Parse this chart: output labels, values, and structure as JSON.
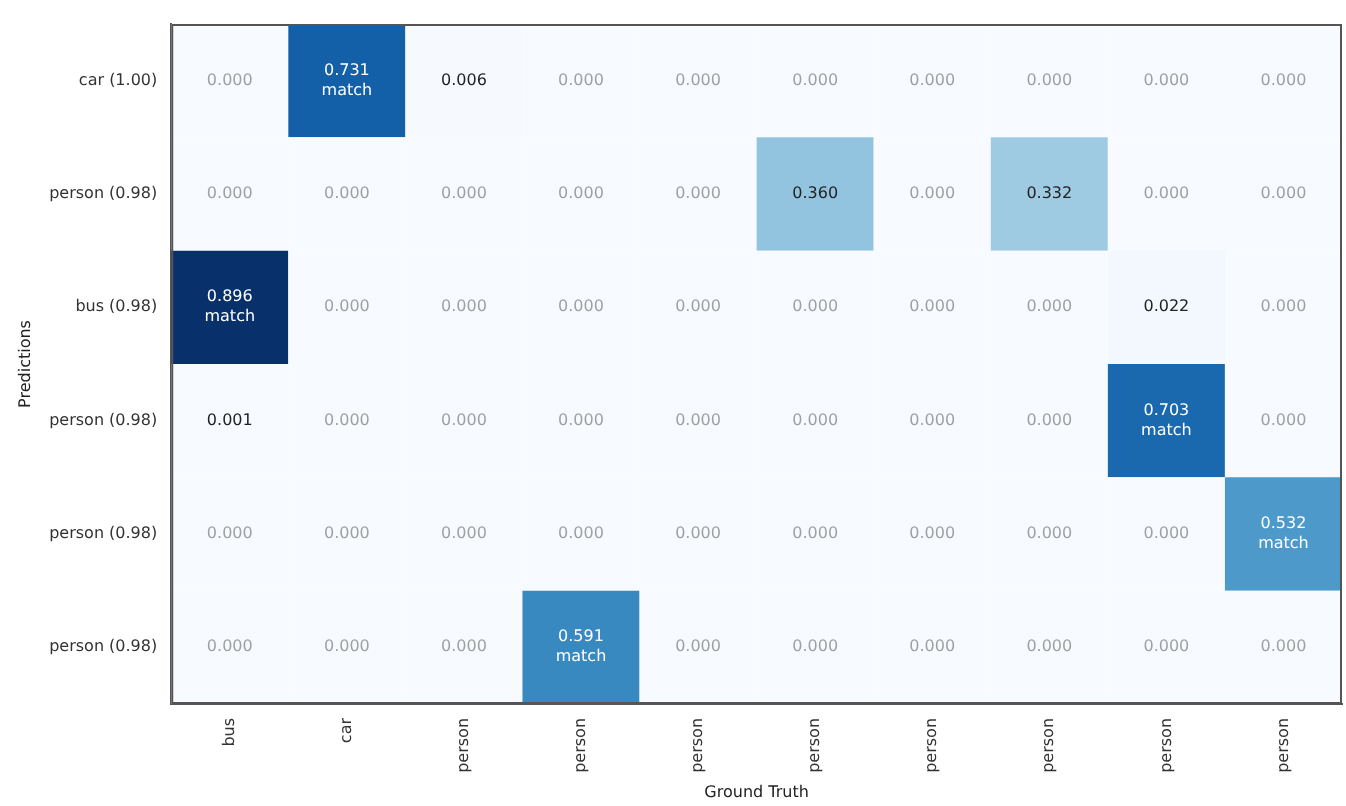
{
  "chart_data": {
    "type": "heatmap",
    "xlabel": "Ground Truth",
    "ylabel": "Predictions",
    "categories": [
      "bus",
      "car",
      "person",
      "person",
      "person",
      "person",
      "person",
      "person",
      "person",
      "person"
    ],
    "y_categories": [
      "car (1.00)",
      "person (0.98)",
      "bus (0.98)",
      "person (0.98)",
      "person (0.98)",
      "person (0.98)"
    ],
    "cells": [
      [
        0.0,
        0.731,
        0.006,
        0.0,
        0.0,
        0.0,
        0.0,
        0.0,
        0.0,
        0.0
      ],
      [
        0.0,
        0.0,
        0.0,
        0.0,
        0.0,
        0.36,
        0.0,
        0.332,
        0.0,
        0.0
      ],
      [
        0.896,
        0.0,
        0.0,
        0.0,
        0.0,
        0.0,
        0.0,
        0.0,
        0.022,
        0.0
      ],
      [
        0.001,
        0.0,
        0.0,
        0.0,
        0.0,
        0.0,
        0.0,
        0.0,
        0.703,
        0.0
      ],
      [
        0.0,
        0.0,
        0.0,
        0.0,
        0.0,
        0.0,
        0.0,
        0.0,
        0.0,
        0.532
      ],
      [
        0.0,
        0.0,
        0.0,
        0.591,
        0.0,
        0.0,
        0.0,
        0.0,
        0.0,
        0.0
      ]
    ],
    "cell_labels": [
      [
        "0.000",
        "0.731\nmatch",
        "0.006",
        "0.000",
        "0.000",
        "0.000",
        "0.000",
        "0.000",
        "0.000",
        "0.000"
      ],
      [
        "0.000",
        "0.000",
        "0.000",
        "0.000",
        "0.000",
        "0.360",
        "0.000",
        "0.332",
        "0.000",
        "0.000"
      ],
      [
        "0.896\nmatch",
        "0.000",
        "0.000",
        "0.000",
        "0.000",
        "0.000",
        "0.000",
        "0.000",
        "0.022",
        "0.000"
      ],
      [
        "0.001",
        "0.000",
        "0.000",
        "0.000",
        "0.000",
        "0.000",
        "0.000",
        "0.000",
        "0.703\nmatch",
        "0.000"
      ],
      [
        "0.000",
        "0.000",
        "0.000",
        "0.000",
        "0.000",
        "0.000",
        "0.000",
        "0.000",
        "0.000",
        "0.532\nmatch"
      ],
      [
        "0.000",
        "0.000",
        "0.000",
        "0.591\nmatch",
        "0.000",
        "0.000",
        "0.000",
        "0.000",
        "0.000",
        "0.000"
      ]
    ]
  }
}
